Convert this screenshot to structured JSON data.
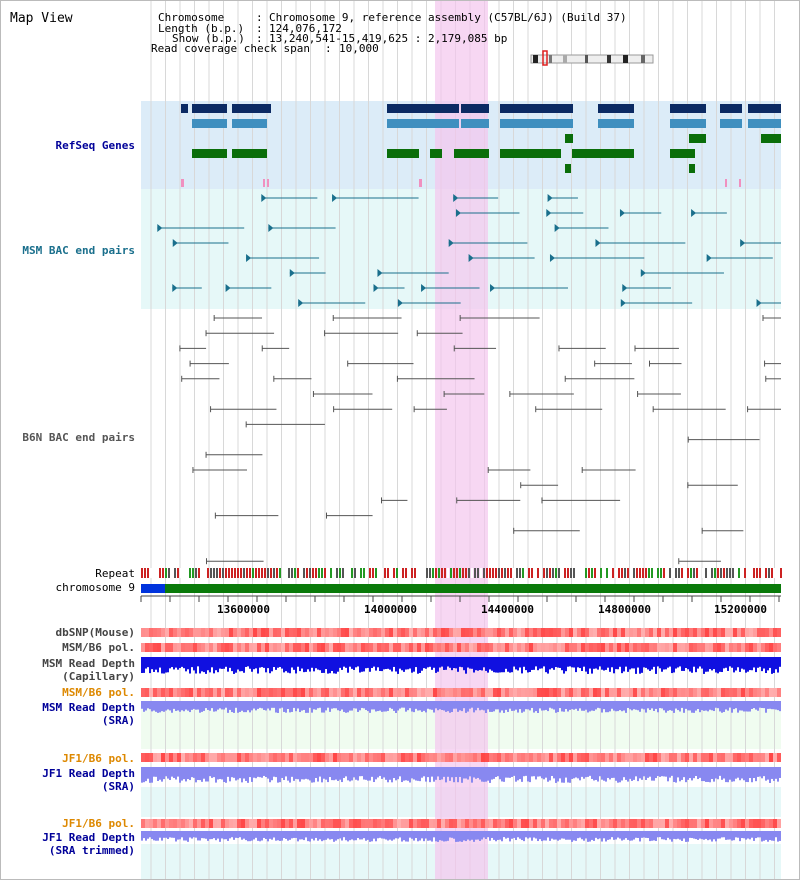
{
  "header": {
    "title": "Map View",
    "chromosome_key": "Chromosome",
    "chromosome_value": "Chromosome 9, reference assembly (C57BL/6J) (Build 37)",
    "length_key": "Length (b.p.)",
    "length_value": "124,076,172",
    "show_key": "Show (b.p.)",
    "show_value": "13,240,541-15,419,625 : 2,179,085 bp",
    "coverage_key": "Read coverage check span",
    "coverage_value": "10,000"
  },
  "tracks": {
    "refseq": "RefSeq Genes",
    "msm_bac": "MSM BAC end pairs",
    "b6n_bac": "B6N BAC end pairs",
    "repeat": "Repeat",
    "chromosome": "chromosome 9",
    "dbsnp": "dbSNP(Mouse)",
    "msm_b6_pol_1": "MSM/B6 pol.",
    "msm_read_depth_cap_1": "MSM Read Depth",
    "msm_read_depth_cap_2": "(Capillary)",
    "msm_b6_pol_2": "MSM/B6 pol.",
    "msm_read_depth_sra_1": "MSM Read Depth",
    "msm_read_depth_sra_2": "(SRA)",
    "jf1_b6_pol_1": "JF1/B6 pol.",
    "jf1_read_depth_sra_1": "JF1 Read Depth",
    "jf1_read_depth_sra_2": "(SRA)",
    "jf1_b6_pol_2": "JF1/B6 pol.",
    "jf1_read_depth_trim_1": "JF1 Read Depth",
    "jf1_read_depth_trim_2": "(SRA trimmed)"
  },
  "axis": {
    "ticks": [
      "13600000",
      "14000000",
      "14400000",
      "14800000",
      "15200000"
    ]
  },
  "colors": {
    "refseq_bg": "#dcecf8",
    "msm_bac_bg": "#e6f8f8",
    "highlight": "#f6d8f0",
    "gene_dark": "#0b2a63",
    "gene_mid": "#3f8fbf",
    "gene_green": "#0a6e0a",
    "msm_bac": "#1a6f8c",
    "b6n_bac": "#555555",
    "chrom_green": "#0a7a0a",
    "chrom_blue": "#0033dd",
    "depth_blue": "#1010e0",
    "depth_lavender": "#8888f0",
    "pol_label": "#dd8800",
    "label_blue": "#000099"
  }
}
